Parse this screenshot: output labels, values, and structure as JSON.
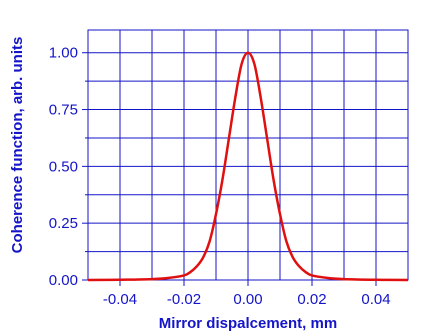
{
  "chart_data": {
    "type": "line",
    "title": "",
    "xlabel": "Mirror dispalcement, mm",
    "ylabel": "Coherence function, arb. units",
    "xlim": [
      -0.05,
      0.05
    ],
    "ylim": [
      0,
      1.1
    ],
    "xticks": [
      -0.04,
      -0.02,
      0.0,
      0.02,
      0.04
    ],
    "xtick_labels": [
      "-0.04",
      "-0.02",
      "0.00",
      "0.02",
      "0.04"
    ],
    "yticks": [
      0.0,
      0.25,
      0.5,
      0.75,
      1.0
    ],
    "ytick_labels": [
      "0.00",
      "0.25",
      "0.50",
      "0.75",
      "1.00"
    ],
    "grid": true,
    "series": [
      {
        "color": "#e01010",
        "x": [
          -0.05,
          -0.04,
          -0.03,
          -0.025,
          -0.02,
          -0.018,
          -0.016,
          -0.014,
          -0.012,
          -0.01,
          -0.008,
          -0.006,
          -0.004,
          -0.002,
          0.0,
          0.002,
          0.004,
          0.006,
          0.008,
          0.01,
          0.012,
          0.014,
          0.016,
          0.018,
          0.02,
          0.025,
          0.03,
          0.04,
          0.05
        ],
        "y": [
          0.0,
          0.001,
          0.004,
          0.009,
          0.02,
          0.035,
          0.06,
          0.1,
          0.17,
          0.29,
          0.44,
          0.62,
          0.8,
          0.95,
          1.0,
          0.95,
          0.8,
          0.62,
          0.44,
          0.29,
          0.17,
          0.1,
          0.06,
          0.035,
          0.02,
          0.009,
          0.004,
          0.001,
          0.0
        ]
      }
    ]
  },
  "colors": {
    "grid": "#1414c8",
    "axis_text": "#1414c8",
    "curve": "#e01010"
  }
}
